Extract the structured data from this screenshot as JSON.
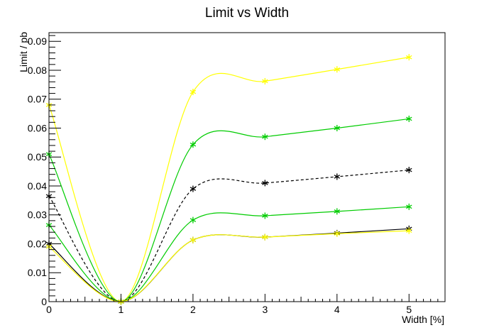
{
  "chart_data": {
    "type": "line",
    "title": "Limit vs Width",
    "xlabel": "Width [%]",
    "ylabel": "Limit / pb",
    "xlim": [
      0,
      5.5
    ],
    "ylim": [
      0,
      0.093
    ],
    "x_ticks": [
      0,
      1,
      2,
      3,
      4,
      5
    ],
    "x_tick_labels": [
      "0",
      "1",
      "2",
      "3",
      "4",
      "5"
    ],
    "y_ticks": [
      0,
      0.01,
      0.02,
      0.03,
      0.04,
      0.05,
      0.06,
      0.07,
      0.08,
      0.09
    ],
    "y_tick_labels": [
      "0",
      "0.01",
      "0.02",
      "0.03",
      "0.04",
      "0.05",
      "0.06",
      "0.07",
      "0.08",
      "0.09"
    ],
    "grid": false,
    "x": [
      0,
      1,
      2,
      3,
      4,
      5
    ],
    "series": [
      {
        "color": "#ffff00",
        "dash": "solid",
        "values": [
          0.068,
          0.0,
          0.0725,
          0.0762,
          0.0803,
          0.0845
        ]
      },
      {
        "color": "#00cc00",
        "dash": "solid",
        "values": [
          0.051,
          0.0,
          0.0543,
          0.057,
          0.06,
          0.0632
        ]
      },
      {
        "color": "#000000",
        "dash": "dashed",
        "values": [
          0.0365,
          0.0,
          0.039,
          0.041,
          0.0432,
          0.0455
        ]
      },
      {
        "color": "#00cc00",
        "dash": "solid",
        "values": [
          0.0265,
          0.0,
          0.0282,
          0.0297,
          0.0312,
          0.0328
        ]
      },
      {
        "color": "#000000",
        "dash": "solid",
        "values": [
          0.02,
          0.0,
          0.0213,
          0.0223,
          0.0237,
          0.0252
        ]
      },
      {
        "color": "#ffff00",
        "dash": "solid",
        "values": [
          0.019,
          0.0,
          0.0213,
          0.0223,
          0.0235,
          0.0245
        ]
      }
    ]
  }
}
